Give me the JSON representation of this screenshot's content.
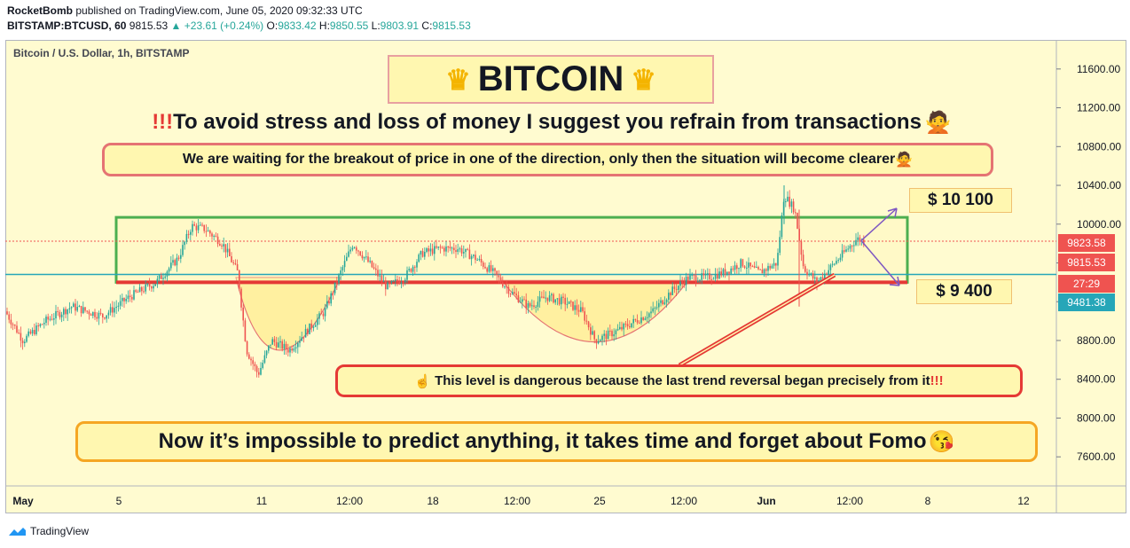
{
  "header": {
    "author": "RocketBomb",
    "published": "published on TradingView.com, June 05, 2020 09:32:33 UTC",
    "symbol": "BITSTAMP:BTCUSD, 60",
    "last": "9815.53",
    "change": "+23.61 (+0.24%)",
    "o_label": "O:",
    "o": "9833.42",
    "h_label": "H:",
    "h": "9850.55",
    "l_label": "L:",
    "l": "9803.91",
    "c_label": "C:",
    "c": "9815.53"
  },
  "symbol_label": "Bitcoin / U.S. Dollar, 1h, BITSTAMP",
  "annotations": {
    "title": "BITCOIN",
    "subtitle": "To avoid stress and loss of money I suggest you refrain from transactions",
    "note1": "We are waiting for the breakout of price in one of the direction, only then the situation will become clearer",
    "target_up": "$ 10 100",
    "target_down": "$ 9 400",
    "danger": "This level is dangerous because the last trend reversal began precisely from it",
    "footer": "Now it’s impossible to predict anything, it takes time and forget about Fomo"
  },
  "price_tags": {
    "t1": "9823.58",
    "t2": "9815.53",
    "timer": "27:29",
    "t3": "9481.38"
  },
  "brand": "TradingView",
  "colors": {
    "up": "#26a69a",
    "down": "#ef5350",
    "background": "#fffbd0",
    "range_box": "#4caf50",
    "support_line": "#e53935",
    "arrow": "#7e57c2"
  },
  "chart_data": {
    "type": "candlestick",
    "ylim": [
      7300,
      11900
    ],
    "yticks": [
      7600,
      8000,
      8400,
      8800,
      9200,
      9600,
      10000,
      10400,
      10800,
      11200,
      11600
    ],
    "ytick_labels": [
      "7600.00",
      "8000.00",
      "8400.00",
      "8800.00",
      "9200.00",
      "9600.00",
      "10000.00",
      "10400.00",
      "10800.00",
      "11200.00",
      "11600.00"
    ],
    "xtick_labels": [
      "May",
      "5",
      "11",
      "12:00",
      "18",
      "12:00",
      "25",
      "12:00",
      "Jun",
      "12:00",
      "8",
      "12"
    ],
    "range_box": {
      "low": 9400,
      "high": 10070
    },
    "support_level": 9400,
    "price_lines": [
      9823.58,
      9815.53,
      9481.38
    ],
    "targets": [
      10100,
      9400
    ],
    "price_path": [
      [
        0,
        9100
      ],
      [
        20,
        8800
      ],
      [
        45,
        9000
      ],
      [
        75,
        9150
      ],
      [
        110,
        9050
      ],
      [
        140,
        9250
      ],
      [
        170,
        9400
      ],
      [
        195,
        9650
      ],
      [
        210,
        9980
      ],
      [
        225,
        9950
      ],
      [
        245,
        9800
      ],
      [
        262,
        9500
      ],
      [
        272,
        8700
      ],
      [
        285,
        8450
      ],
      [
        300,
        8800
      ],
      [
        320,
        8700
      ],
      [
        340,
        8900
      ],
      [
        360,
        9100
      ],
      [
        378,
        9500
      ],
      [
        392,
        9800
      ],
      [
        410,
        9600
      ],
      [
        430,
        9350
      ],
      [
        450,
        9450
      ],
      [
        470,
        9700
      ],
      [
        490,
        9750
      ],
      [
        510,
        9750
      ],
      [
        530,
        9650
      ],
      [
        550,
        9500
      ],
      [
        570,
        9300
      ],
      [
        590,
        9150
      ],
      [
        610,
        9250
      ],
      [
        630,
        9200
      ],
      [
        650,
        9100
      ],
      [
        665,
        8800
      ],
      [
        690,
        8900
      ],
      [
        710,
        9000
      ],
      [
        730,
        9100
      ],
      [
        750,
        9300
      ],
      [
        770,
        9450
      ],
      [
        790,
        9450
      ],
      [
        810,
        9500
      ],
      [
        830,
        9600
      ],
      [
        850,
        9500
      ],
      [
        870,
        9600
      ],
      [
        878,
        10300
      ],
      [
        890,
        10150
      ],
      [
        900,
        9550
      ],
      [
        915,
        9400
      ],
      [
        930,
        9550
      ],
      [
        945,
        9700
      ],
      [
        960,
        9850
      ],
      [
        970,
        9815
      ]
    ]
  }
}
